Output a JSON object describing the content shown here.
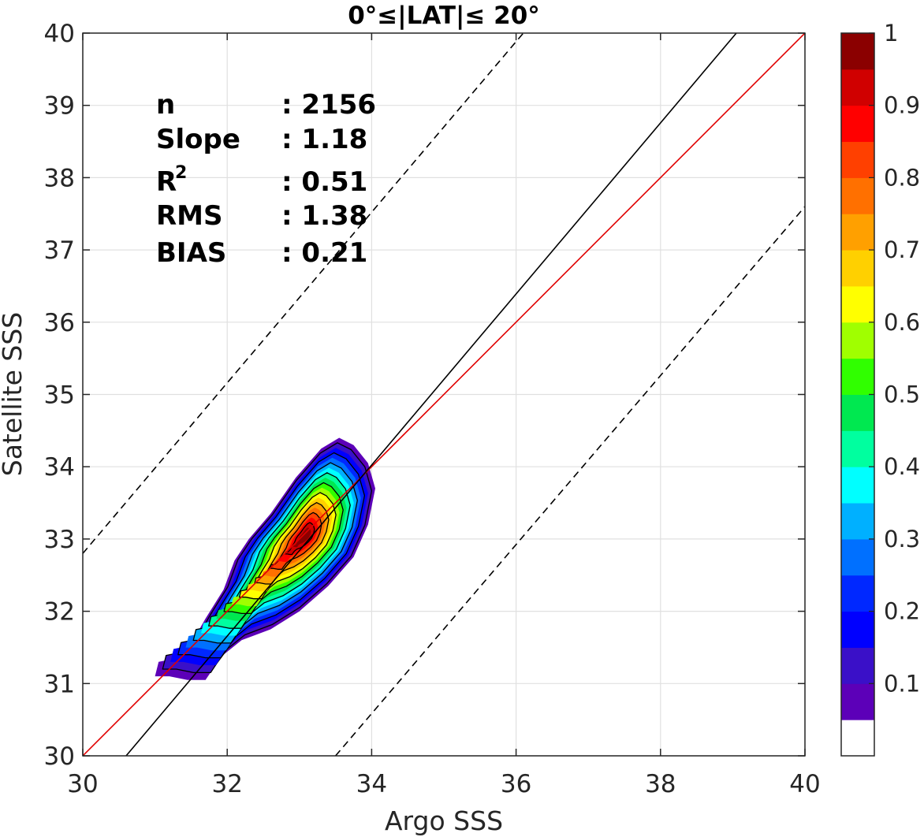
{
  "chart_data": {
    "type": "contour",
    "title": "0°≤|LAT|≤ 20°",
    "xlabel": "Argo SSS",
    "ylabel": "Satellite SSS",
    "xlim": [
      30,
      40
    ],
    "ylim": [
      30,
      40
    ],
    "xticks": [
      "30",
      "32",
      "34",
      "36",
      "38",
      "40"
    ],
    "yticks": [
      "30",
      "31",
      "32",
      "33",
      "34",
      "35",
      "36",
      "37",
      "38",
      "39",
      "40"
    ],
    "grid": true,
    "stats": [
      {
        "label": "n",
        "value": ": 2156"
      },
      {
        "label": "Slope",
        "value": ": 1.18"
      },
      {
        "label": "R",
        "sup": "2",
        "value": ": 0.51"
      },
      {
        "label": "RMS",
        "value": ": 1.38"
      },
      {
        "label": "BIAS",
        "value": ": 0.21"
      }
    ],
    "lines": [
      {
        "kind": "one-to-one",
        "color": "#e00000",
        "style": "solid",
        "points": [
          [
            30,
            30
          ],
          [
            40,
            40
          ]
        ]
      },
      {
        "kind": "regression",
        "color": "#000000",
        "style": "solid",
        "points": [
          [
            30.6,
            30
          ],
          [
            39.05,
            40
          ]
        ]
      },
      {
        "kind": "upper-bound",
        "color": "#000000",
        "style": "dashed",
        "points": [
          [
            30,
            32.8
          ],
          [
            36.1,
            40
          ]
        ]
      },
      {
        "kind": "lower-bound",
        "color": "#000000",
        "style": "dashed",
        "points": [
          [
            33.5,
            30
          ],
          [
            40,
            37.6
          ]
        ]
      }
    ],
    "density": {
      "center": [
        33.08,
        33.05
      ],
      "levels": [
        0.05,
        0.1,
        0.15,
        0.2,
        0.25,
        0.3,
        0.35,
        0.4,
        0.45,
        0.5,
        0.55,
        0.6,
        0.65,
        0.7,
        0.75,
        0.8,
        0.85,
        0.9,
        0.95
      ],
      "outer_contour": [
        [
          31.0,
          31.1
        ],
        [
          31.05,
          31.3
        ],
        [
          31.3,
          31.35
        ],
        [
          31.5,
          31.55
        ],
        [
          31.7,
          31.9
        ],
        [
          31.95,
          32.3
        ],
        [
          32.1,
          32.7
        ],
        [
          32.3,
          33.0
        ],
        [
          32.6,
          33.35
        ],
        [
          32.95,
          33.85
        ],
        [
          33.3,
          34.25
        ],
        [
          33.55,
          34.4
        ],
        [
          33.75,
          34.3
        ],
        [
          33.95,
          34.05
        ],
        [
          34.05,
          33.7
        ],
        [
          33.95,
          33.2
        ],
        [
          33.75,
          32.75
        ],
        [
          33.4,
          32.35
        ],
        [
          33.0,
          32.0
        ],
        [
          32.6,
          31.75
        ],
        [
          32.2,
          31.6
        ],
        [
          31.95,
          31.4
        ],
        [
          31.8,
          31.2
        ],
        [
          31.7,
          31.05
        ],
        [
          31.45,
          31.05
        ],
        [
          31.2,
          31.1
        ]
      ]
    },
    "colorbar": {
      "ticks": [
        "0.1",
        "0.2",
        "0.3",
        "0.4",
        "0.5",
        "0.6",
        "0.7",
        "0.8",
        "0.9",
        "1"
      ],
      "colors": [
        "#ffffff",
        "#5c00b8",
        "#3a10c8",
        "#0000ff",
        "#0028ff",
        "#0070ff",
        "#00b0ff",
        "#00ffff",
        "#00ff9f",
        "#00e850",
        "#30ff00",
        "#a0ff00",
        "#ffff00",
        "#ffd000",
        "#ffa000",
        "#ff7000",
        "#ff4000",
        "#ff0000",
        "#d00000",
        "#8b0000"
      ]
    }
  }
}
